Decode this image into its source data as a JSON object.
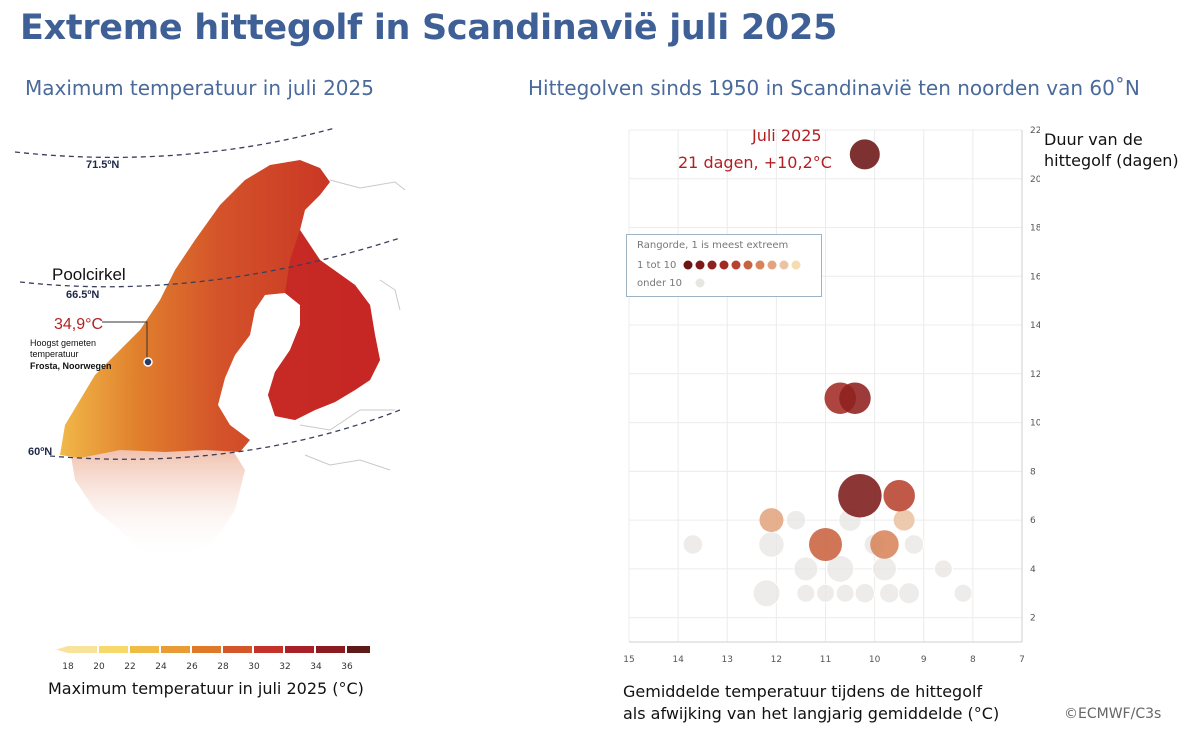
{
  "title": "Extreme hittegolf in Scandinavië juli 2025",
  "map": {
    "subtitle": "Maximum temperatuur in juli 2025",
    "lat_labels": [
      "71.5ºN",
      "66.5ºN",
      "60ºN"
    ],
    "poolcirkel_label": "Poolcirkel",
    "max_value": "34,9°C",
    "max_note_line1": "Hoogst gemeten",
    "max_note_line2": "temperatuur",
    "max_location": "Frosta, Noorwegen",
    "legend": {
      "title": "Maximum temperatuur in juli 2025 (°C)",
      "ticks": [
        "18",
        "20",
        "22",
        "24",
        "26",
        "28",
        "30",
        "32",
        "34",
        "36"
      ],
      "colors": [
        "#f7e49a",
        "#f6d86b",
        "#f0bc45",
        "#e99b36",
        "#df7a2b",
        "#d4572a",
        "#c3332a",
        "#a92128",
        "#8a1b21",
        "#5e1a16"
      ]
    }
  },
  "chart": {
    "subtitle": "Hittegolven sinds 1950 in Scandinavië ten noorden van 60˚N",
    "y_label_line1": "Duur van de",
    "y_label_line2": "hittegolf (dagen)",
    "x_label_line1": "Gemiddelde temperatuur tijdens de hittegolf",
    "x_label_line2": "als afwijking van het langjarig gemiddelde (°C)",
    "highlight_title": "Juli 2025",
    "highlight_detail": "21 dagen, +10,2°C",
    "legend": {
      "title": "Rangorde, 1 is meest extreem",
      "top_label": "1 tot 10",
      "other_label": "onder 10"
    }
  },
  "credit": "©ECMWF/C3s",
  "chart_data": {
    "type": "scatter",
    "title": "Hittegolven sinds 1950 in Scandinavië ten noorden van 60˚N",
    "xlabel": "Gemiddelde temperatuur tijdens de hittegolf als afwijking van het langjarig gemiddelde (°C)",
    "ylabel": "Duur van de hittegolf (dagen)",
    "xlim": [
      15,
      7
    ],
    "ylim": [
      1,
      22
    ],
    "x_ticks": [
      15,
      14,
      13,
      12,
      11,
      10,
      9,
      8,
      7
    ],
    "y_ticks": [
      2,
      4,
      6,
      8,
      10,
      12,
      14,
      16,
      18,
      20,
      22
    ],
    "rank_colors": [
      "#6b1414",
      "#7c1a19",
      "#8e201e",
      "#a32a24",
      "#b8422f",
      "#c9623e",
      "#d7845a",
      "#e2a47e",
      "#ebc3a3",
      "#f7dcb0"
    ],
    "other_color": "#e8e6e3",
    "points": [
      {
        "x": 10.2,
        "y": 21,
        "r": 1,
        "rank": 1,
        "label": "Juli 2025"
      },
      {
        "x": 10.3,
        "y": 7,
        "r": 1.45,
        "rank": 2
      },
      {
        "x": 10.4,
        "y": 11,
        "r": 1.05,
        "rank": 3
      },
      {
        "x": 10.7,
        "y": 11,
        "r": 1.05,
        "rank": 4
      },
      {
        "x": 9.5,
        "y": 7,
        "r": 1.05,
        "rank": 5
      },
      {
        "x": 11.0,
        "y": 5,
        "r": 1.1,
        "rank": 6
      },
      {
        "x": 9.8,
        "y": 5,
        "r": 0.95,
        "rank": 7
      },
      {
        "x": 12.1,
        "y": 6,
        "r": 0.8,
        "rank": 8
      },
      {
        "x": 9.4,
        "y": 6,
        "r": 0.7,
        "rank": 9
      },
      {
        "x": 13.7,
        "y": 5,
        "r": 0.65,
        "rank": 0
      },
      {
        "x": 11.6,
        "y": 6,
        "r": 0.65,
        "rank": 0
      },
      {
        "x": 12.1,
        "y": 5,
        "r": 0.85,
        "rank": 0
      },
      {
        "x": 9.2,
        "y": 5,
        "r": 0.65,
        "rank": 0
      },
      {
        "x": 11.4,
        "y": 4,
        "r": 0.8,
        "rank": 0
      },
      {
        "x": 10.7,
        "y": 4,
        "r": 0.9,
        "rank": 0
      },
      {
        "x": 9.8,
        "y": 4,
        "r": 0.8,
        "rank": 0
      },
      {
        "x": 8.6,
        "y": 4,
        "r": 0.6,
        "rank": 0
      },
      {
        "x": 12.2,
        "y": 3,
        "r": 0.9,
        "rank": 0
      },
      {
        "x": 11.4,
        "y": 3,
        "r": 0.6,
        "rank": 0
      },
      {
        "x": 11.0,
        "y": 3,
        "r": 0.6,
        "rank": 0
      },
      {
        "x": 10.6,
        "y": 3,
        "r": 0.6,
        "rank": 0
      },
      {
        "x": 10.2,
        "y": 3,
        "r": 0.65,
        "rank": 0
      },
      {
        "x": 9.7,
        "y": 3,
        "r": 0.65,
        "rank": 0
      },
      {
        "x": 9.3,
        "y": 3,
        "r": 0.7,
        "rank": 0
      },
      {
        "x": 8.2,
        "y": 3,
        "r": 0.6,
        "rank": 0
      },
      {
        "x": 10.5,
        "y": 6,
        "r": 0.75,
        "rank": 0
      },
      {
        "x": 10.0,
        "y": 5,
        "r": 0.7,
        "rank": 0
      }
    ]
  }
}
